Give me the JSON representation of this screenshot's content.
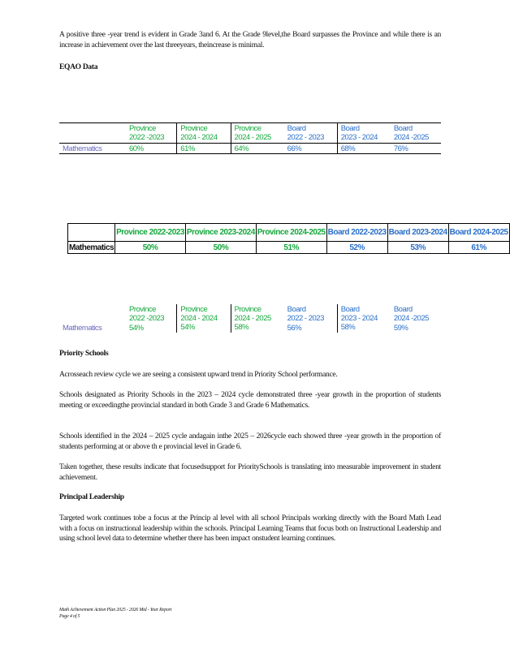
{
  "intro_paragraph": "A positive three -year trend is evident in Grade 3and 6. At the Grade 9level,the Board surpasses the Province and while there is an increase in achievement over the last threeyears, theincrease is minimal.",
  "eqao_heading": "EQAO Data",
  "colors": {
    "province": "#14a83c",
    "board": "#2a6fc9",
    "row_label": "#6a6ac0"
  },
  "table1": {
    "headers": [
      {
        "line1": "Province",
        "line2": "2022 -2023"
      },
      {
        "line1": "Province",
        "line2": "2024 - 2024"
      },
      {
        "line1": "Province",
        "line2": "2024 - 2025"
      },
      {
        "line1": "Board",
        "line2": "2022 - 2023"
      },
      {
        "line1": "Board",
        "line2": "2023 - 2024"
      },
      {
        "line1": "Board",
        "line2": "2024 -2025"
      }
    ],
    "row_label": "Mathematics",
    "values": [
      "60%",
      "61%",
      "64%",
      "66%",
      "68%",
      "76%"
    ]
  },
  "table2": {
    "headers": [
      "Province 2022-2023",
      "Province 2023-2024",
      "Province 2024-2025",
      "Board 2022-2023",
      "Board 2023-2024",
      "Board 2024-2025"
    ],
    "row_label": "Mathematics",
    "values": [
      "50%",
      "50%",
      "51%",
      "52%",
      "53%",
      "61%"
    ]
  },
  "table3": {
    "headers": [
      {
        "line1": "Province",
        "line2": "2022 -2023"
      },
      {
        "line1": "Province",
        "line2": "2024 - 2024"
      },
      {
        "line1": "Province",
        "line2": "2024 - 2025"
      },
      {
        "line1": "Board",
        "line2": "2022 - 2023"
      },
      {
        "line1": "Board",
        "line2": "2023 - 2024"
      },
      {
        "line1": "Board",
        "line2": "2024 -2025"
      }
    ],
    "row_label": "Mathematics",
    "values": [
      "54%",
      "54%",
      "58%",
      "56%",
      "58%",
      "59%"
    ]
  },
  "priority": {
    "heading": "Priority Schools",
    "paragraphs": [
      "Acrosseach review cycle we are seeing a consistent upward trend in Priority School performance.",
      "Schools designated as Priority Schools in the 2023 – 2024 cycle demonstrated three -year growth in the proportion of students meeting or exceedingthe provincial standard in both Grade 3 and Grade 6 Mathematics.",
      "Schools identified in the 2024 – 2025 cycle andagain inthe 2025 – 2026cycle each showed three -year growth in the proportion of students performing at or above th e provincial level in Grade 6.",
      "Taken together, these results indicate that focusedsupport for PrioritySchools is translating into measurable improvement in student achievement."
    ]
  },
  "leadership": {
    "heading": "Principal Leadership",
    "paragraph": "Targeted work continues tobe a focus at the Princip al level with all school Principals working directly with the Board Math Lead with a focus on instructional leadership within the schools. Principal Learning Teams that focus both on Instructional Leadership and using school level data to determine whether there has been impact onstudent learning continues."
  },
  "footer": {
    "line1": "Math Achievement Action Plan 2025 - 2026 Mid - Year Report",
    "line2": "Page 4 of 5"
  }
}
